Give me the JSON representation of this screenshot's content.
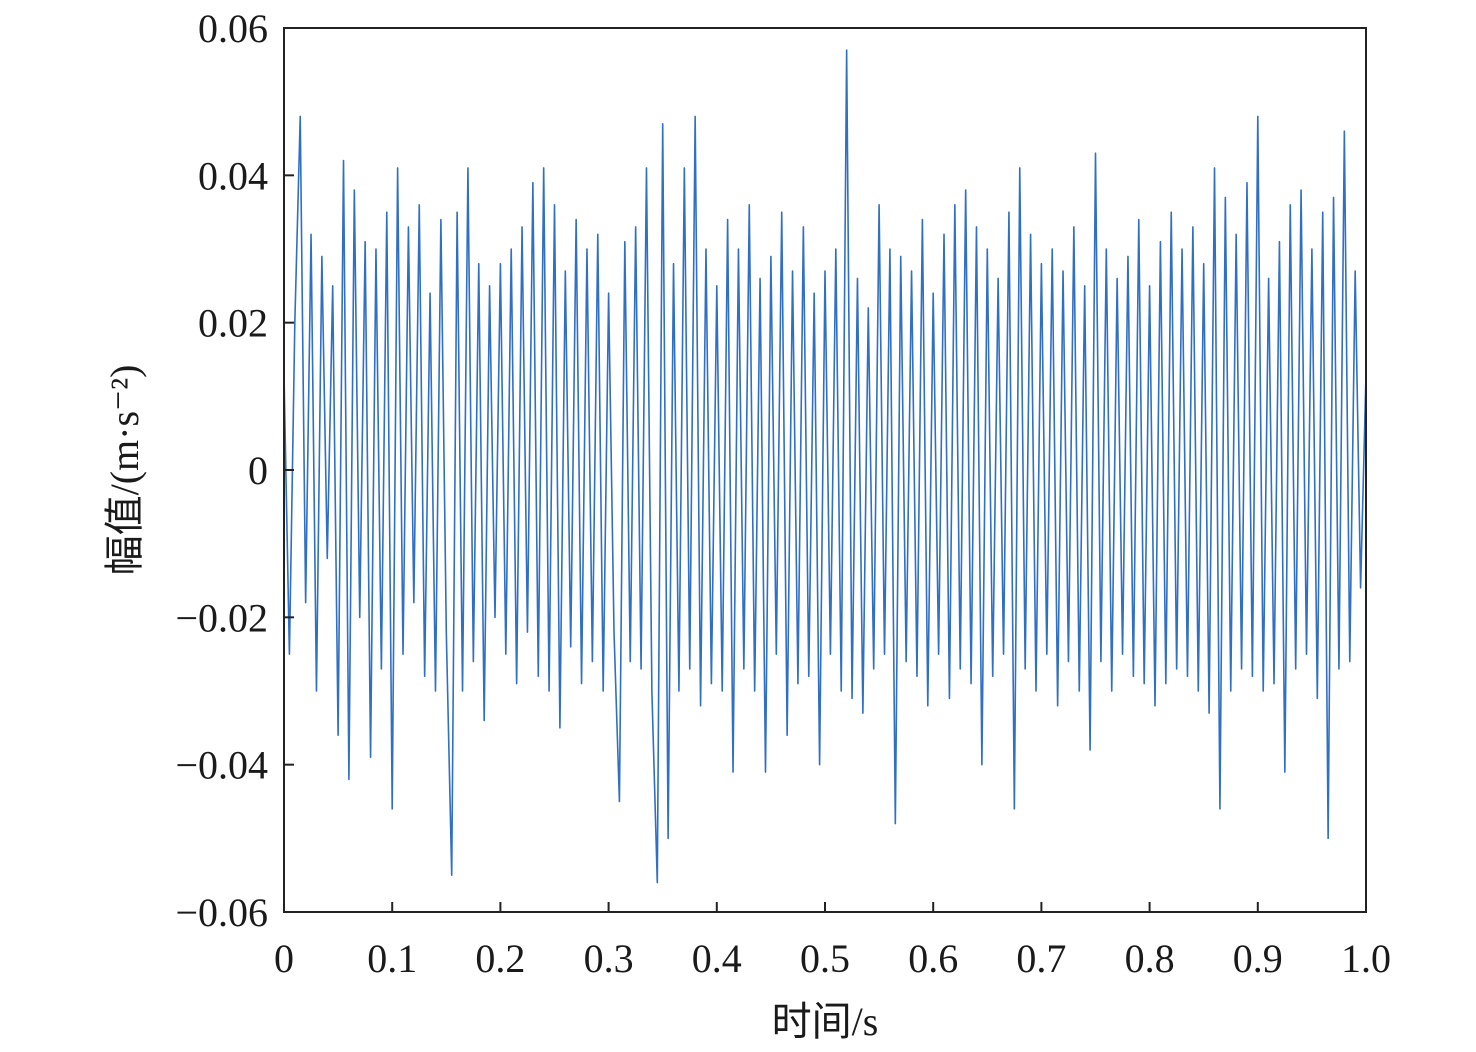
{
  "chart_data": {
    "type": "line",
    "xlabel": "时间/s",
    "ylabel": "幅值/(m·s⁻²)",
    "xlim": [
      0,
      1
    ],
    "ylim": [
      -0.06,
      0.06
    ],
    "xticks": [
      0,
      0.1,
      0.2,
      0.3,
      0.4,
      0.5,
      0.6,
      0.7,
      0.8,
      0.9,
      {
        "value": 1,
        "label": "1.0"
      }
    ],
    "yticks": [
      {
        "value": -0.06,
        "label": "−0.06"
      },
      {
        "value": -0.04,
        "label": "−0.04"
      },
      {
        "value": -0.02,
        "label": "−0.02"
      },
      0,
      0.02,
      0.04,
      0.06
    ],
    "grid": false,
    "x": [
      0,
      0.005,
      0.01,
      0.015,
      0.02,
      0.025,
      0.03,
      0.035,
      0.04,
      0.045,
      0.05,
      0.055,
      0.06,
      0.065,
      0.07,
      0.075,
      0.08,
      0.085,
      0.09,
      0.095,
      0.1,
      0.105,
      0.11,
      0.115,
      0.12,
      0.125,
      0.13,
      0.135,
      0.14,
      0.145,
      0.15,
      0.155,
      0.16,
      0.165,
      0.17,
      0.175,
      0.18,
      0.185,
      0.19,
      0.195,
      0.2,
      0.205,
      0.21,
      0.215,
      0.22,
      0.225,
      0.23,
      0.235,
      0.24,
      0.245,
      0.25,
      0.255,
      0.26,
      0.265,
      0.27,
      0.275,
      0.28,
      0.285,
      0.29,
      0.295,
      0.3,
      0.305,
      0.31,
      0.315,
      0.32,
      0.325,
      0.33,
      0.335,
      0.34,
      0.345,
      0.35,
      0.355,
      0.36,
      0.365,
      0.37,
      0.375,
      0.38,
      0.385,
      0.39,
      0.395,
      0.4,
      0.405,
      0.41,
      0.415,
      0.42,
      0.425,
      0.43,
      0.435,
      0.44,
      0.445,
      0.45,
      0.455,
      0.46,
      0.465,
      0.47,
      0.475,
      0.48,
      0.485,
      0.49,
      0.495,
      0.5,
      0.505,
      0.51,
      0.515,
      0.52,
      0.525,
      0.53,
      0.535,
      0.54,
      0.545,
      0.55,
      0.555,
      0.56,
      0.565,
      0.57,
      0.575,
      0.58,
      0.585,
      0.59,
      0.595,
      0.6,
      0.605,
      0.61,
      0.615,
      0.62,
      0.625,
      0.63,
      0.635,
      0.64,
      0.645,
      0.65,
      0.655,
      0.66,
      0.665,
      0.67,
      0.675,
      0.68,
      0.685,
      0.69,
      0.695,
      0.7,
      0.705,
      0.71,
      0.715,
      0.72,
      0.725,
      0.73,
      0.735,
      0.74,
      0.745,
      0.75,
      0.755,
      0.76,
      0.765,
      0.77,
      0.775,
      0.78,
      0.785,
      0.79,
      0.795,
      0.8,
      0.805,
      0.81,
      0.815,
      0.82,
      0.825,
      0.83,
      0.835,
      0.84,
      0.845,
      0.85,
      0.855,
      0.86,
      0.865,
      0.87,
      0.875,
      0.88,
      0.885,
      0.89,
      0.895,
      0.9,
      0.905,
      0.91,
      0.915,
      0.92,
      0.925,
      0.93,
      0.935,
      0.94,
      0.945,
      0.95,
      0.955,
      0.96,
      0.965,
      0.97,
      0.975,
      0.98,
      0.985,
      0.99,
      0.995,
      1
    ],
    "series": [
      {
        "color": "#2f6fc4",
        "values": [
          0.013,
          -0.025,
          0.02,
          0.048,
          -0.018,
          0.032,
          -0.03,
          0.029,
          -0.012,
          0.025,
          -0.036,
          0.042,
          -0.042,
          0.038,
          -0.02,
          0.031,
          -0.039,
          0.03,
          -0.027,
          0.035,
          -0.046,
          0.041,
          -0.025,
          0.033,
          -0.018,
          0.036,
          -0.028,
          0.024,
          -0.03,
          0.034,
          -0.022,
          -0.055,
          0.035,
          -0.03,
          0.041,
          -0.026,
          0.028,
          -0.034,
          0.025,
          -0.02,
          0.028,
          -0.025,
          0.03,
          -0.029,
          0.033,
          -0.022,
          0.039,
          -0.028,
          0.041,
          -0.03,
          0.036,
          -0.035,
          0.027,
          -0.024,
          0.034,
          -0.029,
          0.03,
          -0.026,
          0.032,
          -0.03,
          0.024,
          -0.022,
          -0.045,
          0.031,
          -0.026,
          0.033,
          -0.027,
          0.041,
          -0.03,
          -0.056,
          0.047,
          -0.05,
          0.028,
          -0.03,
          0.041,
          -0.027,
          0.048,
          -0.032,
          0.03,
          -0.029,
          0.025,
          -0.03,
          0.034,
          -0.041,
          0.03,
          -0.027,
          0.036,
          -0.03,
          0.026,
          -0.041,
          0.029,
          -0.025,
          0.035,
          -0.036,
          0.027,
          -0.029,
          0.033,
          -0.028,
          0.024,
          -0.04,
          0.027,
          -0.025,
          0.03,
          -0.03,
          0.057,
          -0.031,
          0.026,
          -0.033,
          0.022,
          -0.027,
          0.036,
          -0.025,
          0.03,
          -0.048,
          0.029,
          -0.026,
          0.027,
          -0.028,
          0.034,
          -0.032,
          0.024,
          -0.025,
          0.032,
          -0.031,
          0.036,
          -0.027,
          0.038,
          -0.029,
          0.033,
          -0.04,
          0.03,
          -0.028,
          0.026,
          -0.025,
          0.035,
          -0.046,
          0.041,
          -0.027,
          0.032,
          -0.03,
          0.028,
          -0.025,
          0.03,
          -0.032,
          0.027,
          -0.026,
          0.033,
          -0.03,
          0.025,
          -0.038,
          0.043,
          -0.026,
          0.03,
          -0.03,
          0.026,
          -0.025,
          0.029,
          -0.028,
          0.034,
          -0.029,
          0.025,
          -0.032,
          0.031,
          -0.029,
          0.035,
          -0.027,
          0.03,
          -0.028,
          0.033,
          -0.03,
          0.028,
          -0.033,
          0.041,
          -0.046,
          0.037,
          -0.03,
          0.032,
          -0.027,
          0.039,
          -0.028,
          0.048,
          -0.03,
          0.026,
          -0.029,
          0.031,
          -0.041,
          0.036,
          -0.027,
          0.038,
          -0.025,
          0.03,
          -0.031,
          0.035,
          -0.05,
          0.037,
          -0.027,
          0.046,
          -0.026,
          0.027,
          -0.016,
          0.013
        ]
      }
    ]
  }
}
